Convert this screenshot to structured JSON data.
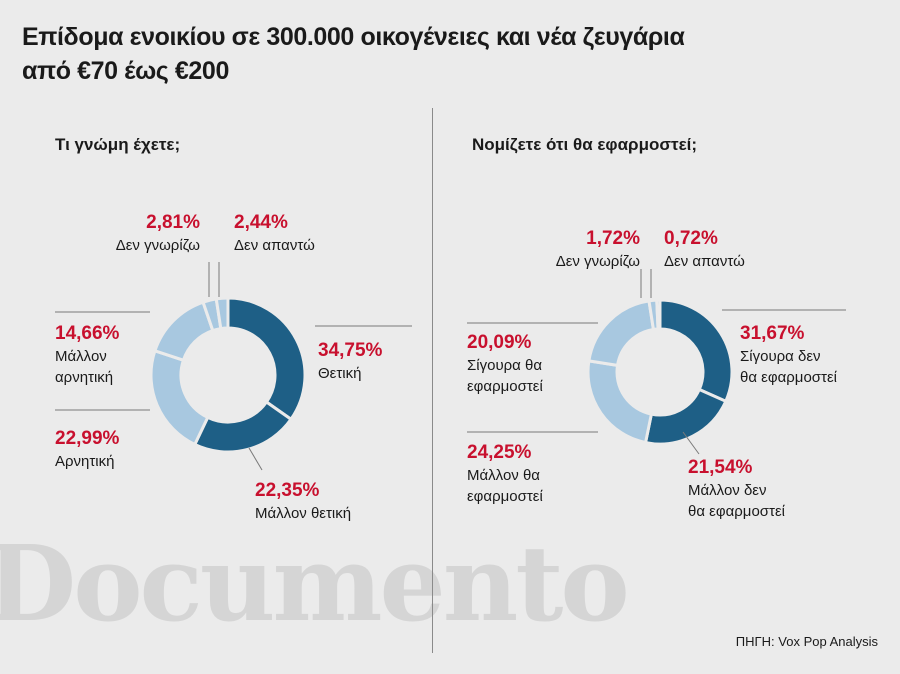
{
  "title_lines": [
    "Επίδομα ενοικίου σε 300.000 οικογένειες και νέα ζευγάρια",
    "από €70 έως €200"
  ],
  "watermark": "Documento",
  "source": "ΠΗΓΗ: Vox Pop Analysis",
  "colors": {
    "dark_blue": "#1e5f86",
    "light_blue": "#a8c8e0",
    "pale_blue": "#c8deee",
    "red": "#c8102e"
  },
  "chart_data": [
    {
      "type": "pie",
      "donut": true,
      "title": "Τι γνώμη έχετε;",
      "slices": [
        {
          "pct_label": "34,75%",
          "label_lines": [
            "Θετική"
          ],
          "value": 34.75,
          "color": "#1e5f86"
        },
        {
          "pct_label": "22,35%",
          "label_lines": [
            "Μάλλον θετική"
          ],
          "value": 22.35,
          "color": "#1e5f86"
        },
        {
          "pct_label": "22,99%",
          "label_lines": [
            "Αρνητική"
          ],
          "value": 22.99,
          "color": "#a8c8e0"
        },
        {
          "pct_label": "14,66%",
          "label_lines": [
            "Μάλλον",
            "αρνητική"
          ],
          "value": 14.66,
          "color": "#a8c8e0"
        },
        {
          "pct_label": "2,81%",
          "label_lines": [
            "Δεν γνωρίζω"
          ],
          "value": 2.81,
          "color": "#a8c8e0"
        },
        {
          "pct_label": "2,44%",
          "label_lines": [
            "Δεν απαντώ"
          ],
          "value": 2.44,
          "color": "#a8c8e0"
        }
      ]
    },
    {
      "type": "pie",
      "donut": true,
      "title": "Νομίζετε ότι θα εφαρμοστεί;",
      "slices": [
        {
          "pct_label": "31,67%",
          "label_lines": [
            "Σίγουρα δεν",
            "θα εφαρμοστεί"
          ],
          "value": 31.67,
          "color": "#1e5f86"
        },
        {
          "pct_label": "21,54%",
          "label_lines": [
            "Μάλλον δεν",
            "θα εφαρμοστεί"
          ],
          "value": 21.54,
          "color": "#1e5f86"
        },
        {
          "pct_label": "24,25%",
          "label_lines": [
            "Μάλλον θα",
            "εφαρμοστεί"
          ],
          "value": 24.25,
          "color": "#a8c8e0"
        },
        {
          "pct_label": "20,09%",
          "label_lines": [
            "Σίγουρα θα",
            "εφαρμοστεί"
          ],
          "value": 20.09,
          "color": "#a8c8e0"
        },
        {
          "pct_label": "1,72%",
          "label_lines": [
            "Δεν γνωρίζω"
          ],
          "value": 1.72,
          "color": "#a8c8e0"
        },
        {
          "pct_label": "0,72%",
          "label_lines": [
            "Δεν απαντώ"
          ],
          "value": 0.72,
          "color": "#a8c8e0"
        }
      ]
    }
  ]
}
